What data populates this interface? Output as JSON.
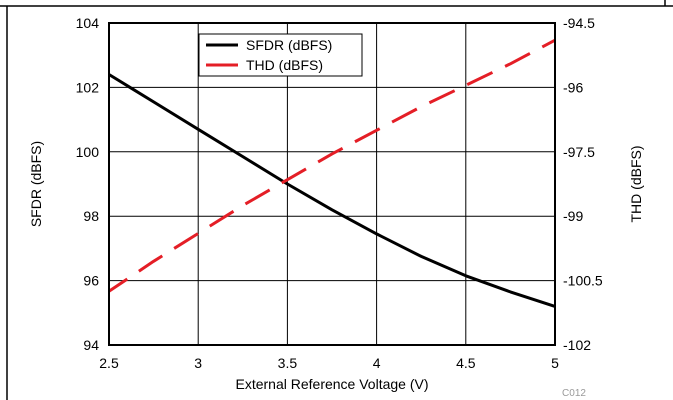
{
  "chart_data": {
    "type": "line",
    "x": [
      2.5,
      2.75,
      3.0,
      3.25,
      3.5,
      3.75,
      4.0,
      4.25,
      4.5,
      4.75,
      5.0
    ],
    "series": [
      {
        "name": "SFDR (dBFS)",
        "axis": "left",
        "color": "#000000",
        "style": "solid",
        "values": [
          102.4,
          101.55,
          100.7,
          99.85,
          99.0,
          98.2,
          97.45,
          96.75,
          96.15,
          95.65,
          95.2
        ]
      },
      {
        "name": "THD (dBFS)",
        "axis": "right",
        "color": "#e41e26",
        "style": "dashed",
        "values": [
          -100.75,
          -100.05,
          -99.4,
          -98.75,
          -98.15,
          -97.55,
          -97.0,
          -96.45,
          -95.95,
          -95.45,
          -94.9
        ]
      }
    ],
    "xlabel": "External Reference Voltage (V)",
    "ylabel": "SFDR (dBFS)",
    "ylabel_right": "THD (dBFS)",
    "xlim": [
      2.5,
      5
    ],
    "ylim": [
      94,
      104
    ],
    "ylim_right": [
      -102,
      -94.5
    ],
    "xticks": [
      2.5,
      3,
      3.5,
      4,
      4.5,
      5
    ],
    "xtick_labels": [
      "2.5",
      "3",
      "3.5",
      "4",
      "4.5",
      "5"
    ],
    "yticks": [
      94,
      96,
      98,
      100,
      102,
      104
    ],
    "ytick_labels": [
      "94",
      "96",
      "98",
      "100",
      "102",
      "104"
    ],
    "yticks_right": [
      -102,
      -100.5,
      -99,
      -97.5,
      -96,
      -94.5
    ],
    "ytick_labels_right": [
      "-102",
      "-100.5",
      "-99",
      "-97.5",
      "-96",
      "-94.5"
    ],
    "grid": true,
    "legend_position": "top-center",
    "figure_code": "C012"
  }
}
